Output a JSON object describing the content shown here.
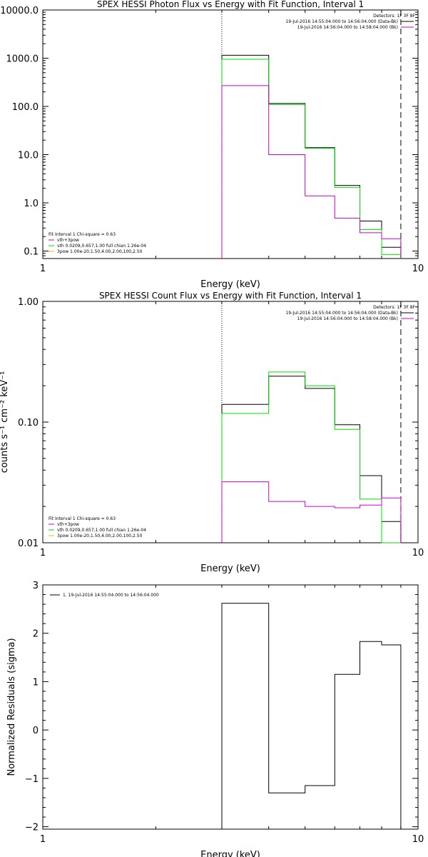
{
  "chart_data": [
    {
      "type": "line",
      "step": true,
      "title": "SPEX HESSI Photon Flux vs Energy with Fit Function, Interval 1",
      "xlabel": "Energy (keV)",
      "ylabel": "",
      "xscale": "log",
      "yscale": "log",
      "xlim": [
        1,
        10
      ],
      "ylim": [
        0.07,
        10000
      ],
      "x_ticks": [
        "1",
        "10"
      ],
      "y_ticks": [
        {
          "v": 10000,
          "label": "10000.0"
        },
        {
          "v": 1000,
          "label": "1000.0"
        },
        {
          "v": 100,
          "label": "100.0"
        },
        {
          "v": 10,
          "label": "10.0"
        },
        {
          "v": 1,
          "label": "1.0"
        },
        {
          "v": 0.1,
          "label": "0.1"
        }
      ],
      "vlines": [
        {
          "x": 3.0,
          "style": "dotted"
        },
        {
          "x": 9.0,
          "style": "dashed"
        }
      ],
      "detectors": "Detectors: 1F 3F 8F",
      "top_legend": [
        {
          "text": "19-Jul-2016 14:55:04.000 to 14:56:04.000 (Data-Bk)",
          "color": "#000000"
        },
        {
          "text": "19-Jul-2016 14:56:04.000 to 14:58:04.000 (Bk)",
          "color": "#d000d0"
        }
      ],
      "fit_legend": [
        {
          "text": "Fit Interval  1    Chi-square = 0.63",
          "color": null
        },
        {
          "text": "vth+3pow",
          "color": "#d000d0"
        },
        {
          "text": "vth 0.0209,0.657,1.00  full chian 1.26e-04",
          "color": "#00dd00"
        },
        {
          "text": "3pow 1.00e-20,1.50,4.00,2.00,100,2.50",
          "color": "#e0c000"
        }
      ],
      "series": [
        {
          "color": "#000000",
          "edges": [
            3.0,
            3.5,
            4.0,
            4.5,
            5.0,
            5.5,
            6.0,
            6.5,
            7.0,
            8.0,
            9.0
          ],
          "values": [
            1150,
            1150,
            115,
            115,
            14,
            14,
            2.3,
            2.3,
            0.42,
            0.12
          ]
        },
        {
          "color": "#00dd00",
          "edges": [
            3.0,
            3.5,
            4.0,
            4.5,
            5.0,
            5.5,
            6.0,
            6.5,
            7.0,
            8.0,
            9.0
          ],
          "values": [
            950,
            950,
            110,
            110,
            13.5,
            13.5,
            2.1,
            2.1,
            0.28,
            0.085
          ]
        },
        {
          "color": "#d000d0",
          "edges": [
            3.0,
            3.5,
            4.0,
            4.5,
            5.0,
            5.5,
            6.0,
            6.5,
            7.0,
            8.0,
            9.0
          ],
          "values": [
            270,
            270,
            10,
            10,
            1.4,
            1.4,
            0.48,
            0.48,
            0.24,
            0.18
          ]
        }
      ]
    },
    {
      "type": "line",
      "step": true,
      "title": "SPEX HESSI Count Flux vs Energy with Fit Function, Interval 1",
      "xlabel": "Energy (keV)",
      "ylabel": "counts s⁻¹ cm⁻² keV⁻¹",
      "xscale": "log",
      "yscale": "log",
      "xlim": [
        1,
        10
      ],
      "ylim": [
        0.01,
        1.0
      ],
      "x_ticks": [
        "1",
        "10"
      ],
      "y_ticks": [
        {
          "v": 1.0,
          "label": "1.00"
        },
        {
          "v": 0.1,
          "label": "0.10"
        },
        {
          "v": 0.01,
          "label": "0.01"
        }
      ],
      "vlines": [
        {
          "x": 3.0,
          "style": "dotted"
        },
        {
          "x": 9.0,
          "style": "dashed"
        }
      ],
      "detectors": "Detectors: 1F 3F 8F",
      "top_legend": [
        {
          "text": "19-Jul-2016 14:55:04.000 to 14:56:04.000 (Data-Bk)",
          "color": "#000000"
        },
        {
          "text": "19-Jul-2016 14:56:04.000 to 14:58:04.000 (Bk)",
          "color": "#d000d0"
        }
      ],
      "fit_legend": [
        {
          "text": "Fit Interval  1    Chi-square = 0.63",
          "color": null
        },
        {
          "text": "vth+3pow",
          "color": "#d000d0"
        },
        {
          "text": "vth 0.0209,0.657,1.00  full chian 1.26e-04",
          "color": "#00dd00"
        },
        {
          "text": "3pow 1.00e-20,1.50,4.00,2.00,100,2.50",
          "color": "#e0c000"
        }
      ],
      "series": [
        {
          "color": "#000000",
          "edges": [
            3.0,
            3.5,
            4.0,
            4.5,
            5.0,
            5.5,
            6.0,
            6.5,
            7.0,
            8.0,
            9.0
          ],
          "values": [
            0.14,
            0.14,
            0.24,
            0.24,
            0.19,
            0.19,
            0.095,
            0.095,
            0.036,
            0.015
          ]
        },
        {
          "color": "#00dd00",
          "edges": [
            3.0,
            3.5,
            4.0,
            4.5,
            5.0,
            5.5,
            6.0,
            6.5,
            7.0,
            8.0,
            9.0
          ],
          "values": [
            0.118,
            0.118,
            0.26,
            0.26,
            0.2,
            0.2,
            0.087,
            0.087,
            0.023,
            0.01
          ]
        },
        {
          "color": "#d000d0",
          "edges": [
            3.0,
            3.5,
            4.0,
            4.5,
            5.0,
            5.5,
            6.0,
            6.5,
            7.0,
            8.0,
            9.0
          ],
          "values": [
            0.032,
            0.032,
            0.022,
            0.022,
            0.02,
            0.02,
            0.0195,
            0.0195,
            0.0205,
            0.0235
          ]
        }
      ]
    },
    {
      "type": "line",
      "step": true,
      "title": "",
      "xlabel": "Energy (keV)",
      "ylabel": "Normalized Residuals (sigma)",
      "xscale": "log",
      "yscale": "linear",
      "xlim": [
        1,
        10
      ],
      "ylim": [
        -2.05,
        3.0
      ],
      "x_ticks": [
        "1",
        "10"
      ],
      "y_ticks": [
        {
          "v": 3,
          "label": "3"
        },
        {
          "v": 2,
          "label": "2"
        },
        {
          "v": 1,
          "label": "1"
        },
        {
          "v": 0,
          "label": "0"
        },
        {
          "v": -1,
          "label": "−1"
        },
        {
          "v": -2,
          "label": "−2"
        }
      ],
      "legend": [
        {
          "text": "1. 19-Jul-2016 14:55:04.000 to 14:56:04.000",
          "color": "#000000"
        }
      ],
      "series": [
        {
          "color": "#000000",
          "edges": [
            3.0,
            3.5,
            4.0,
            4.5,
            5.0,
            5.5,
            6.0,
            6.5,
            7.0,
            8.0,
            9.0
          ],
          "values": [
            2.62,
            2.62,
            -1.3,
            -1.3,
            -1.15,
            -1.15,
            1.15,
            1.15,
            1.83,
            1.76
          ]
        }
      ]
    }
  ]
}
